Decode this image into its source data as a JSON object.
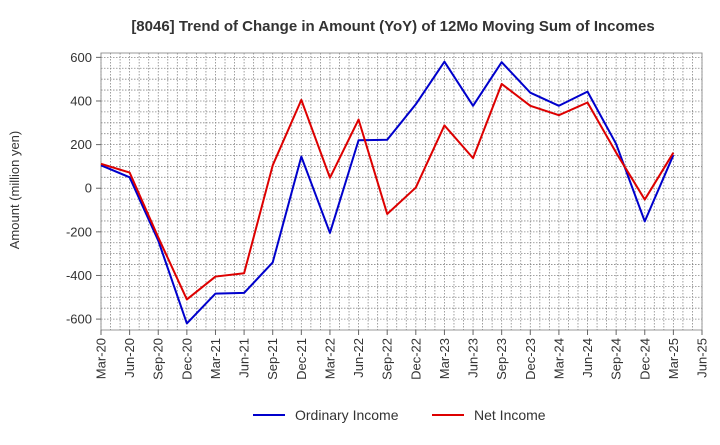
{
  "chart_data": {
    "type": "line",
    "title": "[8046]  Trend of Change in Amount (YoY) of 12Mo Moving Sum of Incomes",
    "ylabel": "Amount (million yen)",
    "xlabel": "",
    "ylim": [
      -650,
      620
    ],
    "yticks": [
      -600,
      -400,
      -200,
      0,
      200,
      400,
      600
    ],
    "x_tick_labels": [
      "Mar-20",
      "Jun-20",
      "Sep-20",
      "Dec-20",
      "Mar-21",
      "Jun-21",
      "Sep-21",
      "Dec-21",
      "Mar-22",
      "Jun-22",
      "Sep-22",
      "Dec-22",
      "Mar-23",
      "Jun-23",
      "Sep-23",
      "Dec-23",
      "Mar-24",
      "Jun-24",
      "Sep-24",
      "Dec-24",
      "Mar-25",
      "Jun-25"
    ],
    "grid": true,
    "legend_position": "bottom",
    "series": [
      {
        "name": "Ordinary Income",
        "color": "#0000cc",
        "values": [
          105,
          50,
          -240,
          -620,
          -483,
          -480,
          -340,
          145,
          -205,
          220,
          222,
          385,
          580,
          378,
          578,
          438,
          378,
          443,
          203,
          -152,
          152
        ]
      },
      {
        "name": "Net Income",
        "color": "#dd0000",
        "values": [
          112,
          72,
          -225,
          -510,
          -405,
          -390,
          105,
          405,
          48,
          315,
          -118,
          3,
          288,
          138,
          478,
          378,
          335,
          393,
          163,
          -52,
          163
        ]
      }
    ]
  }
}
